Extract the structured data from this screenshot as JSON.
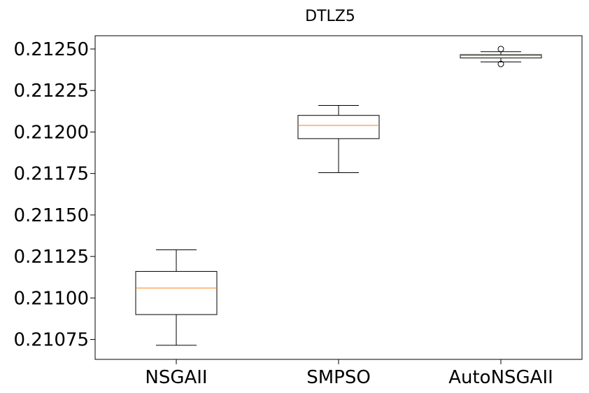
{
  "chart_data": {
    "type": "box",
    "title": "DTLZ5",
    "xlabel": "",
    "ylabel": "",
    "categories": [
      "NSGAII",
      "SMPSO",
      "AutoNSGAII"
    ],
    "ylim": [
      0.21063,
      0.21258
    ],
    "yticks": [
      0.21075,
      0.211,
      0.21125,
      0.2115,
      0.21175,
      0.212,
      0.21225,
      0.2125
    ],
    "ytick_labels": [
      "0.21075",
      "0.21100",
      "0.21125",
      "0.21150",
      "0.21175",
      "0.21200",
      "0.21225",
      "0.21250"
    ],
    "grid": false,
    "colors": {
      "box": "#000000",
      "median": "#ff7f0e"
    },
    "boxes": [
      {
        "name": "NSGAII",
        "whisker_low": 0.210715,
        "q1": 0.2109,
        "median": 0.21106,
        "q3": 0.21116,
        "whisker_high": 0.21129,
        "fliers": []
      },
      {
        "name": "SMPSO",
        "whisker_low": 0.211755,
        "q1": 0.21196,
        "median": 0.21204,
        "q3": 0.2121,
        "whisker_high": 0.21216,
        "fliers": []
      },
      {
        "name": "AutoNSGAII",
        "whisker_low": 0.212422,
        "q1": 0.212446,
        "median": 0.21246,
        "q3": 0.212466,
        "whisker_high": 0.212484,
        "fliers": [
          0.21241,
          0.2125
        ]
      }
    ]
  }
}
